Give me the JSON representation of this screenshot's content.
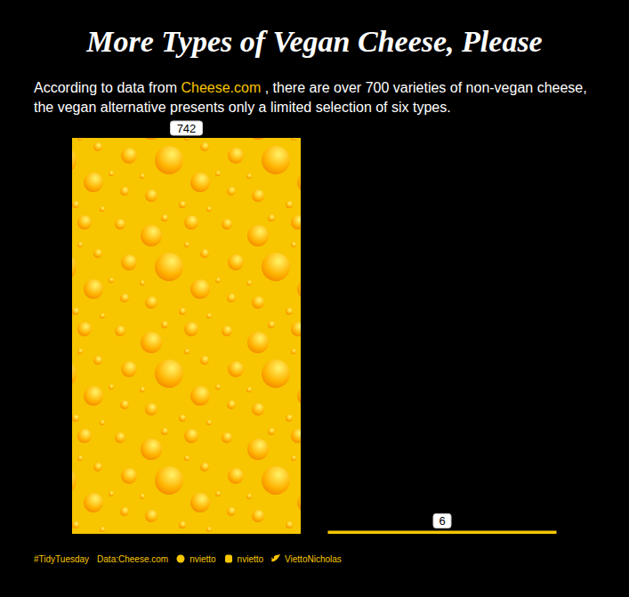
{
  "chart_data": {
    "type": "bar",
    "title": "More Types of Vegan Cheese, Please",
    "subtitle": [
      "According to data from ",
      "Cheese.com",
      " , there are over 700 varieties of non-vegan cheese, the vegan alternative presents only a limited selection of six types."
    ],
    "categories": [
      null,
      null
    ],
    "values": [
      742,
      6
    ],
    "colors": [
      "#f7c600",
      "#f7c600"
    ],
    "ylim": [
      0,
      742
    ],
    "data_labels": true,
    "tick_labels": false,
    "caption": [
      "#TidyTuesday",
      "Data:Cheese.com",
      "nvietto",
      "nvietto",
      "ViettoNicholas"
    ]
  }
}
